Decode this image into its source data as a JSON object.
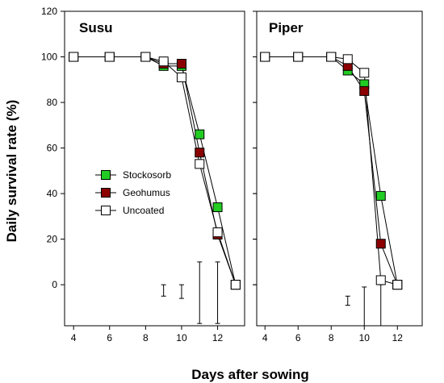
{
  "chart_data": {
    "type": "line",
    "ylabel": "Daily survival rate (%)",
    "xlabel": "Days after sowing",
    "ylim": [
      -18,
      120
    ],
    "yticks": [
      0,
      20,
      40,
      60,
      80,
      100,
      120
    ],
    "xticks": [
      4,
      6,
      8,
      10,
      12
    ],
    "grid": false,
    "legend": {
      "placement": "left-center of first panel",
      "entries": [
        {
          "label": "Stockosorb",
          "color": "#22cc22"
        },
        {
          "label": "Geohumus",
          "color": "#8b0000"
        },
        {
          "label": "Uncoated",
          "color": "#ffffff"
        }
      ]
    },
    "panels": [
      {
        "title": "Susu",
        "xlim": [
          3.5,
          13.5
        ],
        "series": [
          {
            "name": "Stockosorb",
            "x": [
              4,
              6,
              8,
              9,
              10,
              11,
              12,
              13
            ],
            "values": [
              100,
              100,
              100,
              96,
              96,
              66,
              34,
              0
            ]
          },
          {
            "name": "Geohumus",
            "x": [
              4,
              6,
              8,
              9,
              10,
              11,
              12,
              13
            ],
            "values": [
              100,
              100,
              100,
              97,
              97,
              58,
              22,
              0
            ]
          },
          {
            "name": "Uncoated",
            "x": [
              4,
              6,
              8,
              9,
              10,
              11,
              12,
              13
            ],
            "values": [
              100,
              100,
              100,
              98,
              91,
              53,
              23,
              0
            ]
          }
        ],
        "error_bars": [
          {
            "x": 9,
            "low": -5,
            "high": 0
          },
          {
            "x": 10,
            "low": -6,
            "high": 0
          },
          {
            "x": 11,
            "low": -17,
            "high": 10
          },
          {
            "x": 12,
            "low": -17,
            "high": 10
          }
        ]
      },
      {
        "title": "Piper",
        "xlim": [
          3.5,
          13.5
        ],
        "series": [
          {
            "name": "Stockosorb",
            "x": [
              4,
              6,
              8,
              9,
              10,
              11,
              12
            ],
            "values": [
              100,
              100,
              100,
              94,
              88,
              39,
              0
            ]
          },
          {
            "name": "Geohumus",
            "x": [
              4,
              6,
              8,
              9,
              10,
              11,
              12
            ],
            "values": [
              100,
              100,
              100,
              96,
              85,
              18,
              0
            ]
          },
          {
            "name": "Uncoated",
            "x": [
              4,
              6,
              8,
              9,
              10,
              11,
              12
            ],
            "values": [
              100,
              100,
              100,
              99,
              93,
              2,
              0
            ]
          }
        ],
        "error_bars": [
          {
            "x": 9,
            "low": -9,
            "high": -5
          },
          {
            "x": 10,
            "low": -18,
            "high": -1
          },
          {
            "x": 11,
            "low": -18,
            "high": 0
          }
        ]
      }
    ]
  }
}
